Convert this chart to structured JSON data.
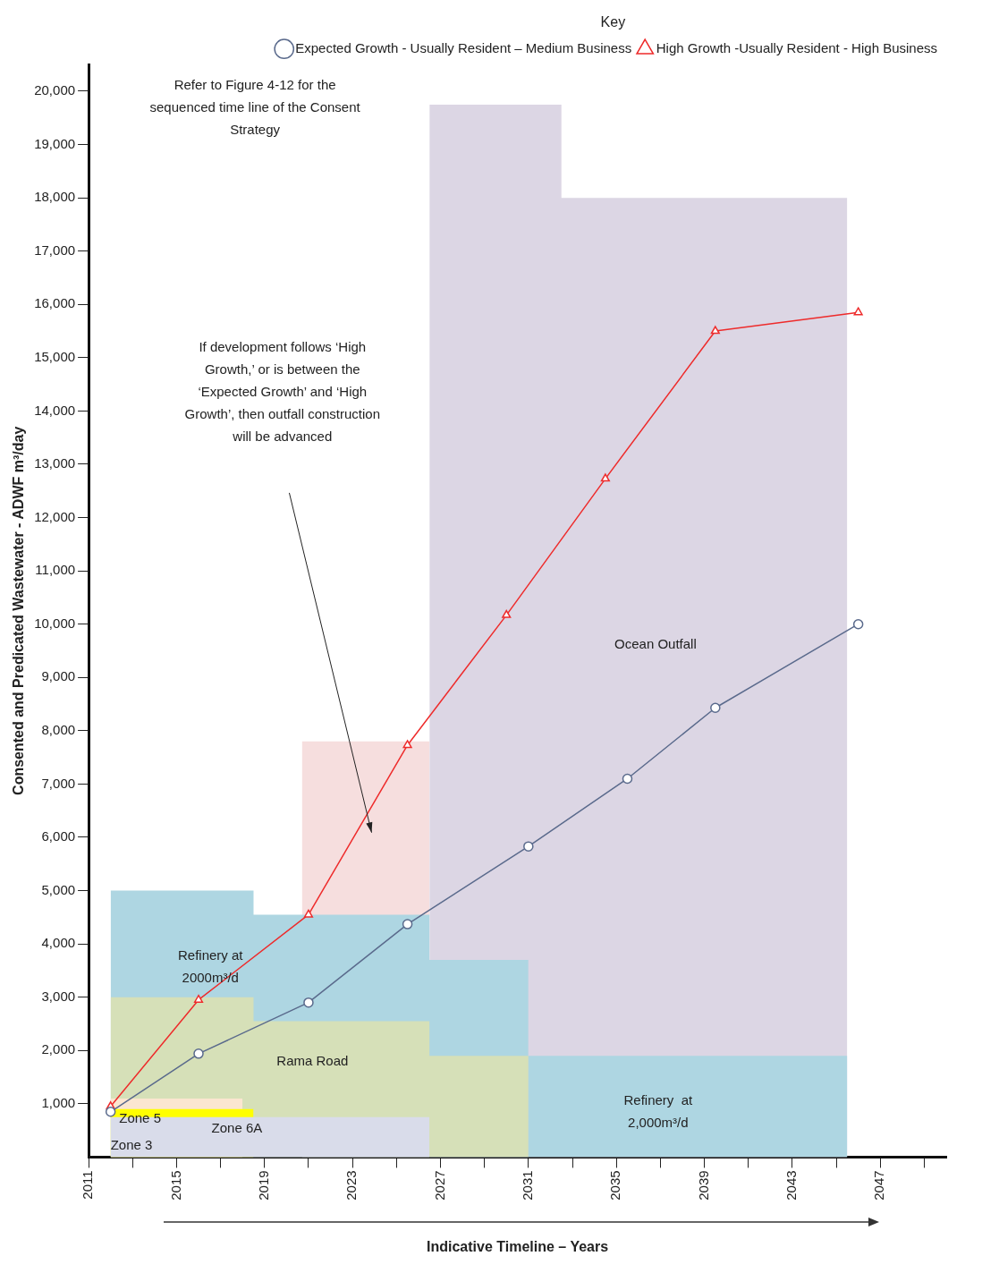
{
  "chart_data": {
    "type": "line",
    "xlabel": "Indicative Timeline – Years",
    "ylabel": "Consented and Predicated Wastewater - ADWF m³/day",
    "legend_title": "Key",
    "legend": "top right",
    "grid": false,
    "xlim": [
      2011,
      2050
    ],
    "xticks": [
      2011,
      {
        "value": 2013,
        "label": null
      },
      2015,
      {
        "value": 2017,
        "label": null
      },
      2019,
      {
        "value": 2021,
        "label": null
      },
      2023,
      {
        "value": 2025,
        "label": null
      },
      2027,
      {
        "value": 2029,
        "label": null
      },
      2031,
      {
        "value": 2033,
        "label": null
      },
      2035,
      {
        "value": 2037,
        "label": null
      },
      2039,
      {
        "value": 2041,
        "label": null
      },
      2043,
      {
        "value": 2045,
        "label": null
      },
      2047,
      {
        "value": 2049,
        "label": null
      }
    ],
    "ylim": [
      0,
      20500
    ],
    "yticks": [
      {
        "value": 1000,
        "label": "1,000"
      },
      {
        "value": 2000,
        "label": "2,000"
      },
      {
        "value": 3000,
        "label": "3,000"
      },
      {
        "value": 4000,
        "label": "4,000"
      },
      {
        "value": 5000,
        "label": "5,000"
      },
      {
        "value": 6000,
        "label": "6,000"
      },
      {
        "value": 7000,
        "label": "7,000"
      },
      {
        "value": 8000,
        "label": "8,000"
      },
      {
        "value": 9000,
        "label": "9,000"
      },
      {
        "value": 10000,
        "label": "10,000"
      },
      {
        "value": 11000,
        "label": "11,000"
      },
      {
        "value": 12000,
        "label": "12,000"
      },
      {
        "value": 13000,
        "label": "13,000"
      },
      {
        "value": 14000,
        "label": "14,000"
      },
      {
        "value": 15000,
        "label": "15,000"
      },
      {
        "value": 16000,
        "label": "16,000"
      },
      {
        "value": 17000,
        "label": "17,000"
      },
      {
        "value": 18000,
        "label": "18,000"
      },
      {
        "value": 19000,
        "label": "19,000"
      },
      {
        "value": 20000,
        "label": "20,000"
      }
    ],
    "series": [
      {
        "type": "area",
        "color": "#dcd6e4",
        "x": [
          2026.5,
          2032.5,
          2032.5,
          2045.5
        ],
        "values": [
          19750,
          19750,
          18000,
          18000
        ]
      },
      {
        "type": "area",
        "color": "#f6dede",
        "x": [
          2020.7,
          2026.5
        ],
        "values": [
          7800,
          7800
        ]
      },
      {
        "type": "area",
        "color": "#aed6e2",
        "x": [
          2012,
          2018.5,
          2018.5,
          2026.5,
          2026.5,
          2031
        ],
        "values": [
          5000,
          5000,
          4550,
          4550,
          3700,
          3700
        ]
      },
      {
        "type": "area",
        "color": "#aed6e2",
        "x": [
          2031,
          2045.5
        ],
        "values": [
          1900,
          1900
        ]
      },
      {
        "type": "area",
        "color": "#d6e0b8",
        "x": [
          2012,
          2018.5,
          2018.5,
          2026.5,
          2026.5,
          2031
        ],
        "values": [
          3000,
          3000,
          2550,
          2550,
          1900,
          1900
        ]
      },
      {
        "type": "area",
        "color": "#fbe6d0",
        "x": [
          2012,
          2018
        ],
        "values": [
          1100,
          1100
        ]
      },
      {
        "type": "area",
        "color": "#ffff00",
        "x": [
          2012,
          2018.5
        ],
        "values": [
          900,
          900
        ]
      },
      {
        "type": "area",
        "color": "#d9dcea",
        "x": [
          2012,
          2026.5
        ],
        "values": [
          750,
          750
        ]
      },
      {
        "type": "line",
        "name": "High Growth -Usually Resident - High Business",
        "color": "#ee2b2b",
        "marker": "triangle",
        "x": [
          2012,
          2016,
          2021,
          2025.5,
          2030,
          2034.5,
          2039.5,
          2046
        ],
        "values": [
          950,
          2950,
          4550,
          7730,
          10170,
          12730,
          15500,
          15850
        ]
      },
      {
        "type": "line",
        "name": "Expected Growth - Usually Resident – Medium Business",
        "color": "#5a6a8c",
        "marker": "circle",
        "x": [
          2012,
          2016,
          2021,
          2025.5,
          2031,
          2035.5,
          2039.5,
          2046
        ],
        "values": [
          850,
          1940,
          2900,
          4370,
          5830,
          7100,
          8430,
          10000
        ]
      }
    ],
    "annotations": [
      "Refer to Figure 4-12 for the sequenced time line of the Consent Strategy",
      "If development follows ‘High Growth,’ or is between the ‘Expected Growth’ and ‘High Growth’, then outfall construction will be advanced",
      "Ocean Outfall",
      "Refinery at 2000m³/d",
      "Rama Road",
      "Refinery  at 2,000m³/d",
      "Zone 5",
      "Zone 6A",
      "Zone 3"
    ]
  }
}
